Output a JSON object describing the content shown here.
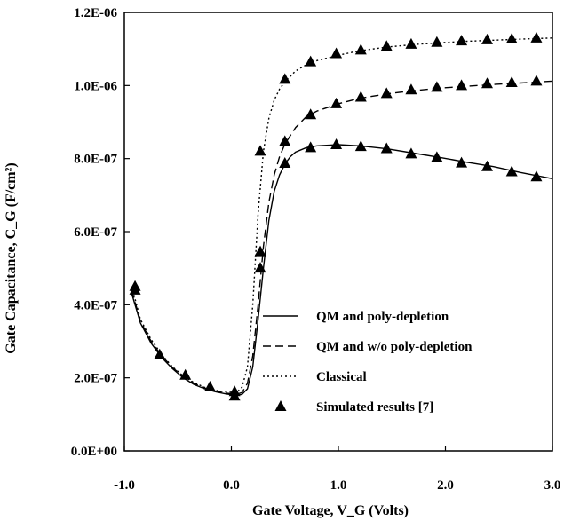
{
  "chart_data": {
    "type": "line",
    "xlabel": "Gate Voltage, V_G (Volts)",
    "ylabel": "Gate Capacitance, C_G (F/cm²)",
    "xlim": [
      -1.0,
      3.0
    ],
    "ylim": [
      0.0,
      1.2e-06
    ],
    "x_ticks": [
      "-1.0",
      "0.0",
      "1.0",
      "2.0",
      "3.0"
    ],
    "y_ticks": [
      "0.0E+00",
      "2.0E-07",
      "4.0E-07",
      "6.0E-07",
      "8.0E-07",
      "1.0E-06",
      "1.2E-06"
    ],
    "grid": false,
    "legend_position": "bottom-right",
    "series": [
      {
        "name": "QM and poly-depletion",
        "style": "solid",
        "x": [
          -0.93,
          -0.85,
          -0.75,
          -0.65,
          -0.55,
          -0.45,
          -0.35,
          -0.25,
          -0.15,
          -0.05,
          0.05,
          0.1,
          0.15,
          0.2,
          0.25,
          0.3,
          0.35,
          0.4,
          0.45,
          0.5,
          0.55,
          0.6,
          0.7,
          0.8,
          1.0,
          1.2,
          1.45,
          1.7,
          1.95,
          2.2,
          2.45,
          2.7,
          3.0
        ],
        "y": [
          4.3e-07,
          3.5e-07,
          2.95e-07,
          2.55e-07,
          2.25e-07,
          2e-07,
          1.82e-07,
          1.7e-07,
          1.62e-07,
          1.56e-07,
          1.52e-07,
          1.55e-07,
          1.7e-07,
          2.3e-07,
          3.6e-07,
          5e-07,
          6.3e-07,
          7.1e-07,
          7.55e-07,
          7.85e-07,
          8.05e-07,
          8.18e-07,
          8.3e-07,
          8.35e-07,
          8.38e-07,
          8.35e-07,
          8.27e-07,
          8.15e-07,
          8.03e-07,
          7.9e-07,
          7.78e-07,
          7.62e-07,
          7.45e-07
        ]
      },
      {
        "name": "QM and w/o poly-depletion",
        "style": "dashed",
        "x": [
          -0.93,
          -0.85,
          -0.75,
          -0.65,
          -0.55,
          -0.45,
          -0.35,
          -0.25,
          -0.15,
          -0.05,
          0.05,
          0.1,
          0.15,
          0.2,
          0.25,
          0.3,
          0.35,
          0.4,
          0.45,
          0.5,
          0.6,
          0.7,
          0.8,
          1.0,
          1.2,
          1.45,
          1.7,
          1.95,
          2.2,
          2.45,
          2.7,
          3.0
        ],
        "y": [
          4.4e-07,
          3.55e-07,
          3e-07,
          2.6e-07,
          2.28e-07,
          2.03e-07,
          1.85e-07,
          1.72e-07,
          1.64e-07,
          1.58e-07,
          1.55e-07,
          1.6e-07,
          1.85e-07,
          2.6e-07,
          4e-07,
          5.6e-07,
          6.8e-07,
          7.55e-07,
          8.05e-07,
          8.4e-07,
          8.85e-07,
          9.15e-07,
          9.3e-07,
          9.5e-07,
          9.65e-07,
          9.77e-07,
          9.86e-07,
          9.93e-07,
          9.98e-07,
          1.003e-06,
          1.007e-06,
          1.012e-06
        ]
      },
      {
        "name": "Classical",
        "style": "dotted",
        "x": [
          -0.93,
          -0.85,
          -0.75,
          -0.65,
          -0.55,
          -0.45,
          -0.35,
          -0.25,
          -0.15,
          -0.05,
          0.05,
          0.1,
          0.15,
          0.2,
          0.25,
          0.3,
          0.35,
          0.4,
          0.45,
          0.5,
          0.6,
          0.7,
          0.8,
          1.0,
          1.2,
          1.45,
          1.7,
          1.95,
          2.2,
          2.45,
          2.7,
          3.0
        ],
        "y": [
          4.5e-07,
          3.6e-07,
          3.05e-07,
          2.63e-07,
          2.3e-07,
          2.05e-07,
          1.87e-07,
          1.74e-07,
          1.66e-07,
          1.61e-07,
          1.6e-07,
          1.75e-07,
          2.3e-07,
          4e-07,
          6.5e-07,
          8.2e-07,
          9.1e-07,
          9.6e-07,
          9.9e-07,
          1.01e-06,
          1.04e-06,
          1.057e-06,
          1.068e-06,
          1.083e-06,
          1.095e-06,
          1.105e-06,
          1.112e-06,
          1.117e-06,
          1.121e-06,
          1.124e-06,
          1.127e-06,
          1.13e-06
        ]
      },
      {
        "name": "Simulated results [7]",
        "style": "marker-triangle",
        "x": [
          -0.9,
          -0.9,
          -0.67,
          -0.43,
          -0.2,
          0.03,
          0.03,
          0.27,
          0.27,
          0.27,
          0.5,
          0.5,
          0.5,
          0.74,
          0.74,
          0.74,
          0.98,
          0.98,
          0.98,
          1.21,
          1.21,
          1.21,
          1.45,
          1.45,
          1.45,
          1.68,
          1.68,
          1.68,
          1.92,
          1.92,
          1.92,
          2.15,
          2.15,
          2.15,
          2.39,
          2.39,
          2.39,
          2.62,
          2.62,
          2.62,
          2.85,
          2.85,
          2.85
        ],
        "y": [
          4.4e-07,
          4.5e-07,
          2.63e-07,
          2.07e-07,
          1.75e-07,
          1.5e-07,
          1.62e-07,
          5e-07,
          5.45e-07,
          8.2e-07,
          7.87e-07,
          8.47e-07,
          1.017e-06,
          8.3e-07,
          9.2e-07,
          1.065e-06,
          8.38e-07,
          9.5e-07,
          1.087e-06,
          8.33e-07,
          9.68e-07,
          1.097e-06,
          8.27e-07,
          9.78e-07,
          1.107e-06,
          8.13e-07,
          9.88e-07,
          1.113e-06,
          8.03e-07,
          9.95e-07,
          1.118e-06,
          7.88e-07,
          1e-06,
          1.122e-06,
          7.78e-07,
          1.005e-06,
          1.125e-06,
          7.64e-07,
          1.008e-06,
          1.127e-06,
          7.5e-07,
          1.012e-06,
          1.13e-06
        ]
      }
    ]
  }
}
